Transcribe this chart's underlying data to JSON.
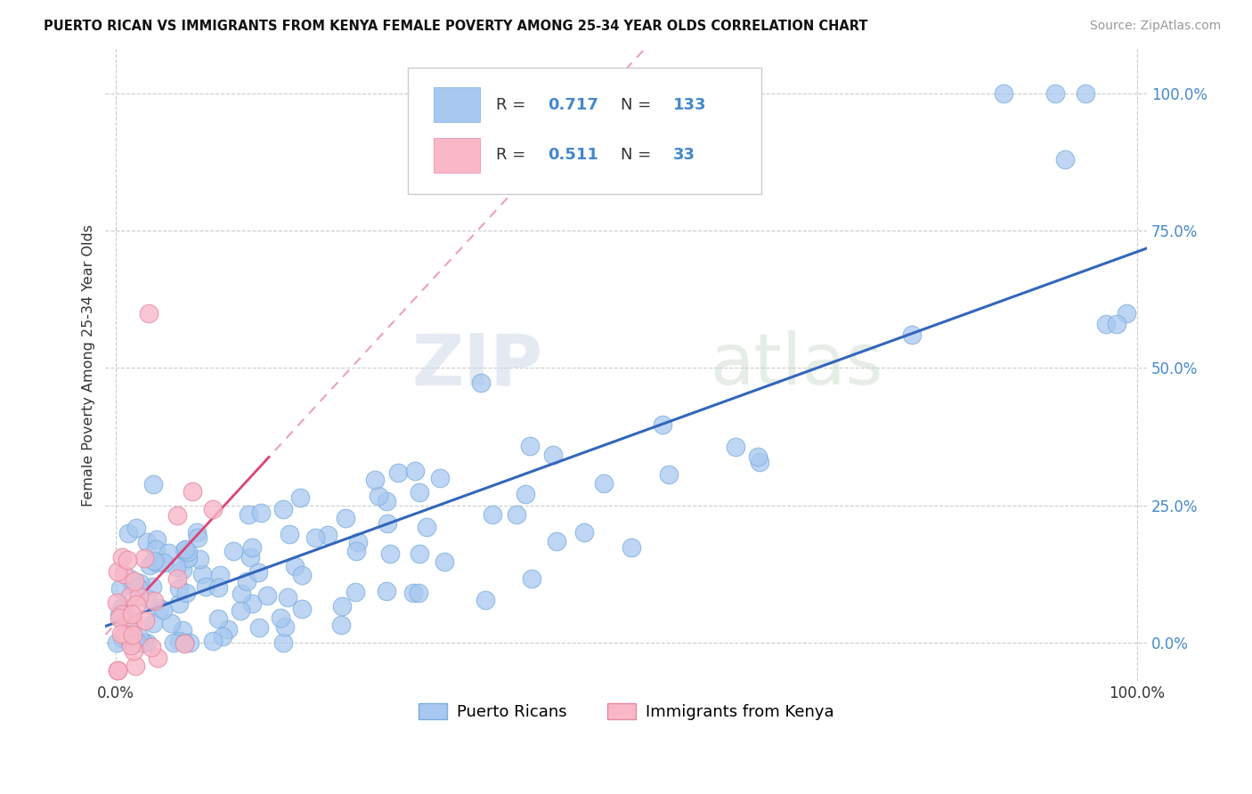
{
  "title": "PUERTO RICAN VS IMMIGRANTS FROM KENYA FEMALE POVERTY AMONG 25-34 YEAR OLDS CORRELATION CHART",
  "source": "Source: ZipAtlas.com",
  "ylabel": "Female Poverty Among 25-34 Year Olds",
  "blue_R": "0.717",
  "blue_N": "133",
  "pink_R": "0.511",
  "pink_N": "33",
  "blue_color": "#a8c8f0",
  "blue_edge_color": "#7aaedd",
  "pink_color": "#f8b8c8",
  "pink_edge_color": "#e888a0",
  "blue_line_color": "#3366bb",
  "pink_line_color": "#dd4477",
  "pink_dash_color": "#f0a0b8",
  "legend_label_blue": "Puerto Ricans",
  "legend_label_pink": "Immigrants from Kenya",
  "watermark": "ZIPatlas",
  "background_color": "#ffffff",
  "tick_color": "#4488cc",
  "grid_color": "#cccccc"
}
